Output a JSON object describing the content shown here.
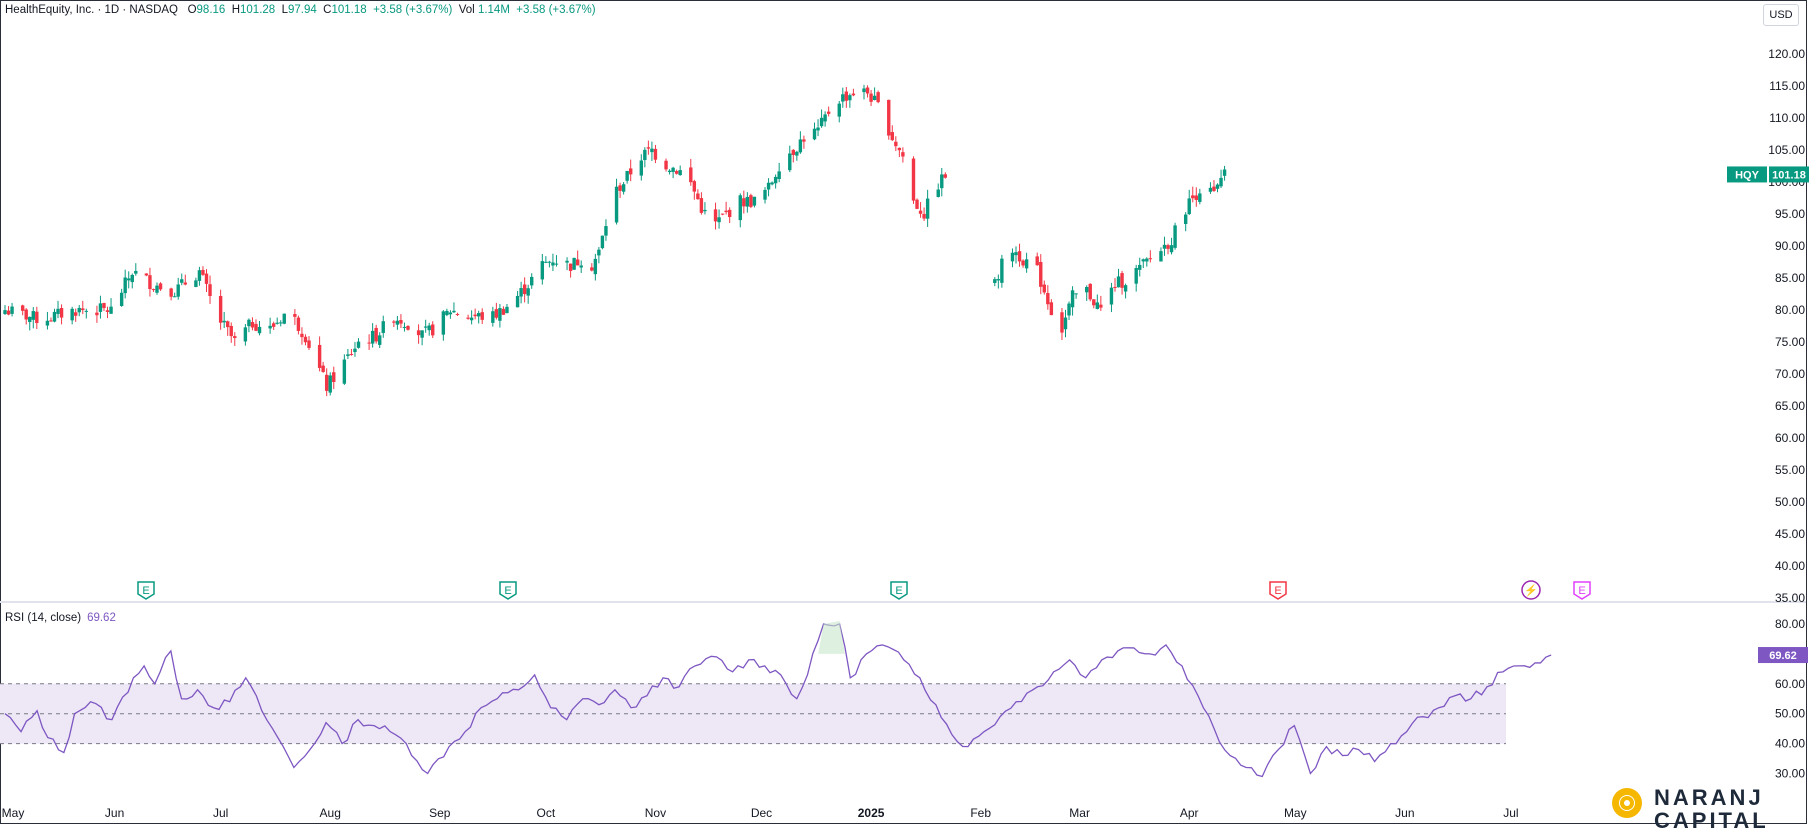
{
  "header": {
    "symbol": "HealthEquity, Inc. · 1D · NASDAQ",
    "o_label": "O",
    "o_value": "98.16",
    "h_label": "H",
    "h_value": "101.28",
    "l_label": "L",
    "l_value": "97.94",
    "c_label": "C",
    "c_value": "101.18",
    "change": "+3.58 (+3.67%)",
    "vol_label": "Vol",
    "vol_value": "1.14M",
    "vol_change": "+3.58 (+3.67%)"
  },
  "currency": "USD",
  "ticker_tag": {
    "symbol": "HQY",
    "price": "101.18"
  },
  "rsi": {
    "title": "RSI (14, close)",
    "value": "69.62",
    "ticks": [
      "80.00",
      "70.00",
      "60.00",
      "50.00",
      "40.00",
      "30.00"
    ],
    "upper_band": 60,
    "middle_band": 50,
    "lower_band": 40
  },
  "events": [
    {
      "label": "E",
      "kind": "earnings",
      "color": "#089981"
    },
    {
      "label": "E",
      "kind": "earnings",
      "color": "#089981"
    },
    {
      "label": "E",
      "kind": "earnings",
      "color": "#089981"
    },
    {
      "label": "E",
      "kind": "earnings",
      "color": "#f23645"
    },
    {
      "label": "⚡",
      "kind": "dividend-split",
      "color": "#9c27b0"
    },
    {
      "label": "E",
      "kind": "upcoming-earnings",
      "color": "#e040fb"
    }
  ],
  "brand": {
    "line1": "NARANJ",
    "line2": "CAPITAL"
  },
  "colors": {
    "up": "#089981",
    "down": "#f23645",
    "rsi": "#7e57c2",
    "band": "#ede7f6"
  },
  "chart_data": {
    "type": "candlestick",
    "y_axis": [
      "120.00",
      "115.00",
      "110.00",
      "105.00",
      "100.00",
      "95.00",
      "90.00",
      "85.00",
      "80.00",
      "75.00",
      "70.00",
      "65.00",
      "60.00",
      "55.00",
      "50.00",
      "45.00",
      "40.00",
      "35.00"
    ],
    "ylim": [
      35,
      122
    ],
    "x_ticks": [
      "May",
      "Jun",
      "Jul",
      "Aug",
      "Sep",
      "Oct",
      "Nov",
      "Dec",
      "2025",
      "Feb",
      "Mar",
      "Apr",
      "May",
      "Jun",
      "Jul"
    ],
    "x_tick_days": [
      0,
      31,
      61,
      92,
      123,
      153,
      184,
      214,
      245,
      276,
      304,
      335,
      365,
      396,
      426
    ],
    "start_date": "2024-05-01",
    "close_anchors": [
      [
        0,
        80
      ],
      [
        10,
        78.5
      ],
      [
        20,
        80
      ],
      [
        30,
        80
      ],
      [
        36,
        86
      ],
      [
        42,
        84
      ],
      [
        48,
        83
      ],
      [
        55,
        86
      ],
      [
        60,
        79
      ],
      [
        65,
        75
      ],
      [
        70,
        78
      ],
      [
        75,
        77
      ],
      [
        80,
        80
      ],
      [
        85,
        76
      ],
      [
        88,
        72
      ],
      [
        91,
        68
      ],
      [
        95,
        71
      ],
      [
        100,
        75
      ],
      [
        105,
        76
      ],
      [
        110,
        79
      ],
      [
        114,
        78
      ],
      [
        118,
        76
      ],
      [
        121,
        77
      ],
      [
        126,
        80
      ],
      [
        131,
        79
      ],
      [
        138,
        79
      ],
      [
        143,
        81
      ],
      [
        148,
        84
      ],
      [
        152,
        87
      ],
      [
        155,
        88
      ],
      [
        160,
        87
      ],
      [
        163,
        88
      ],
      [
        165,
        86
      ],
      [
        168,
        89
      ],
      [
        172,
        98
      ],
      [
        175,
        100
      ],
      [
        180,
        104
      ],
      [
        183,
        105
      ],
      [
        186,
        103
      ],
      [
        190,
        102
      ],
      [
        193,
        101
      ],
      [
        197,
        96
      ],
      [
        200,
        93
      ],
      [
        204,
        95
      ],
      [
        208,
        97
      ],
      [
        212,
        97
      ],
      [
        216,
        99
      ],
      [
        220,
        104
      ],
      [
        223,
        105
      ],
      [
        226,
        107
      ],
      [
        230,
        108
      ],
      [
        233,
        111
      ],
      [
        236,
        113
      ],
      [
        240,
        114
      ],
      [
        244,
        114
      ],
      [
        248,
        111
      ],
      [
        251,
        107
      ],
      [
        254,
        104
      ],
      [
        257,
        97
      ],
      [
        260,
        95
      ],
      [
        263,
        99
      ],
      [
        266,
        101
      ]
    ],
    "close_anchors_2": [
      [
        280,
        84
      ],
      [
        284,
        90
      ],
      [
        288,
        88
      ],
      [
        292,
        86
      ],
      [
        296,
        80
      ],
      [
        299,
        77
      ],
      [
        302,
        82
      ],
      [
        306,
        83
      ],
      [
        310,
        80
      ],
      [
        314,
        84
      ],
      [
        318,
        85
      ],
      [
        322,
        87
      ],
      [
        326,
        89
      ],
      [
        330,
        91
      ],
      [
        334,
        96
      ],
      [
        338,
        99
      ],
      [
        342,
        98
      ],
      [
        345,
        101
      ]
    ],
    "rsi_anchors": [
      [
        0,
        50
      ],
      [
        3,
        44
      ],
      [
        6,
        51
      ],
      [
        8,
        42
      ],
      [
        11,
        37
      ],
      [
        13,
        50
      ],
      [
        16,
        54
      ],
      [
        20,
        48
      ],
      [
        24,
        62
      ],
      [
        26,
        66
      ],
      [
        28,
        60
      ],
      [
        31,
        71
      ],
      [
        33,
        55
      ],
      [
        36,
        58
      ],
      [
        39,
        52
      ],
      [
        42,
        54
      ],
      [
        45,
        62
      ],
      [
        48,
        51
      ],
      [
        51,
        42
      ],
      [
        54,
        32
      ],
      [
        57,
        38
      ],
      [
        60,
        47
      ],
      [
        63,
        40
      ],
      [
        66,
        48
      ],
      [
        69,
        46
      ],
      [
        72,
        44
      ],
      [
        75,
        40
      ],
      [
        79,
        30
      ],
      [
        83,
        39
      ],
      [
        86,
        44
      ],
      [
        89,
        52
      ],
      [
        92,
        55
      ],
      [
        96,
        58
      ],
      [
        99,
        63
      ],
      [
        102,
        52
      ],
      [
        105,
        48
      ],
      [
        108,
        55
      ],
      [
        111,
        53
      ],
      [
        114,
        58
      ],
      [
        117,
        52
      ],
      [
        120,
        56
      ],
      [
        123,
        62
      ],
      [
        126,
        59
      ],
      [
        129,
        66
      ],
      [
        133,
        69
      ],
      [
        136,
        64
      ],
      [
        139,
        68
      ],
      [
        142,
        66
      ],
      [
        145,
        63
      ],
      [
        148,
        55
      ],
      [
        150,
        63
      ],
      [
        153,
        80
      ],
      [
        156,
        80
      ],
      [
        158,
        62
      ],
      [
        161,
        70
      ],
      [
        164,
        73
      ],
      [
        168,
        68
      ],
      [
        171,
        62
      ],
      [
        174,
        53
      ],
      [
        177,
        43
      ],
      [
        180,
        39
      ],
      [
        183,
        44
      ],
      [
        186,
        49
      ],
      [
        189,
        54
      ],
      [
        193,
        59
      ],
      [
        196,
        64
      ],
      [
        199,
        68
      ],
      [
        202,
        62
      ],
      [
        205,
        68
      ],
      [
        208,
        71
      ],
      [
        211,
        72
      ],
      [
        214,
        70
      ],
      [
        217,
        73
      ],
      [
        220,
        66
      ],
      [
        223,
        56
      ],
      [
        226,
        45
      ],
      [
        229,
        36
      ],
      [
        232,
        32
      ],
      [
        235,
        29
      ],
      [
        238,
        38
      ],
      [
        241,
        46
      ],
      [
        244,
        30
      ],
      [
        247,
        39
      ],
      [
        250,
        36
      ],
      [
        253,
        38
      ],
      [
        256,
        34
      ],
      [
        259,
        40
      ],
      [
        262,
        44
      ],
      [
        265,
        49
      ],
      [
        268,
        52
      ],
      [
        271,
        56
      ],
      [
        274,
        55
      ],
      [
        277,
        59
      ],
      [
        280,
        64
      ],
      [
        283,
        66
      ],
      [
        286,
        67
      ],
      [
        289,
        69.62
      ]
    ]
  }
}
